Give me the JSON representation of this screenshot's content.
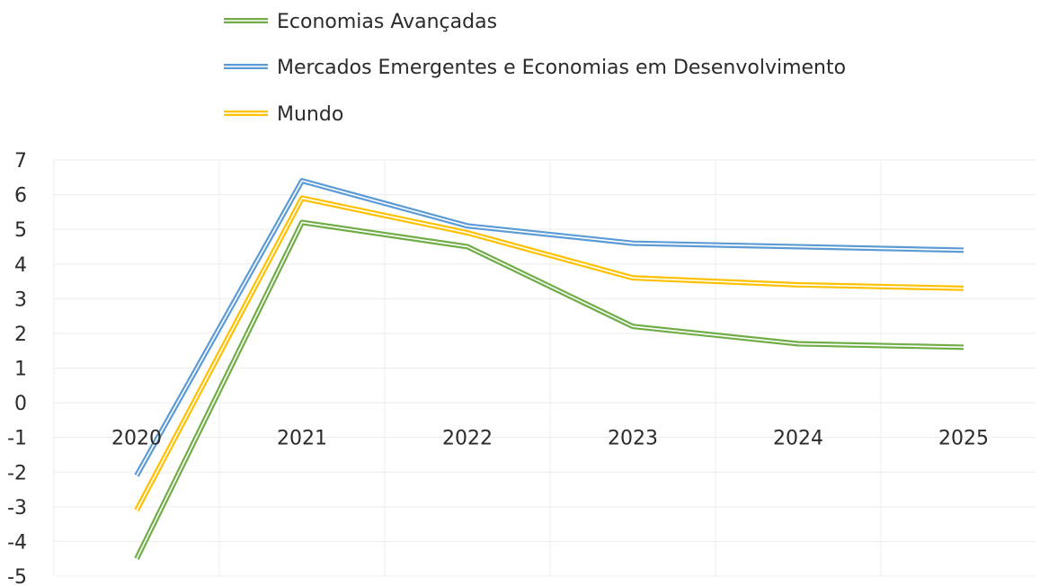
{
  "chart_data": {
    "type": "line",
    "title": "",
    "xlabel": "",
    "ylabel": "",
    "categories": [
      "2020",
      "2021",
      "2022",
      "2023",
      "2024",
      "2025"
    ],
    "ylim": [
      -5,
      7
    ],
    "yticks": [
      7,
      6,
      5,
      4,
      3,
      2,
      1,
      0,
      -1,
      -2,
      -3,
      -4,
      -5
    ],
    "grid": true,
    "legend_position": "top-left",
    "series": [
      {
        "name": "Economias Avançadas",
        "color": "#70ad47",
        "values": [
          -4.5,
          5.2,
          4.5,
          2.2,
          1.7,
          1.6
        ]
      },
      {
        "name": "Mercados Emergentes e Economias em Desenvolvimento",
        "color": "#5b9bd5",
        "values": [
          -2.1,
          6.4,
          5.1,
          4.6,
          4.5,
          4.4
        ]
      },
      {
        "name": "Mundo",
        "color": "#ffc000",
        "values": [
          -3.1,
          5.9,
          4.9,
          3.6,
          3.4,
          3.3
        ]
      }
    ]
  }
}
